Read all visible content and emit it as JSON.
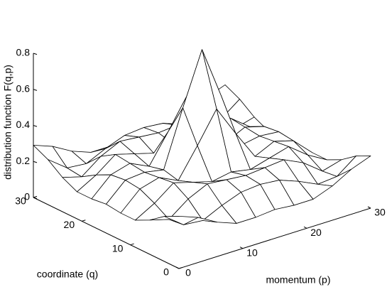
{
  "chart_data": {
    "type": "surface",
    "xlabel": "momentum (p)",
    "ylabel": "coordinate (q)",
    "zlabel": "distribution function F(q,p)",
    "x": [
      0,
      3,
      6,
      9,
      12,
      15,
      18,
      21,
      24,
      27,
      30
    ],
    "y": [
      0,
      3,
      6,
      9,
      12,
      15,
      18,
      21,
      24,
      27,
      30
    ],
    "z": [
      [
        0.29,
        0.25,
        0.19,
        0.15,
        0.15,
        0.16,
        0.15,
        0.15,
        0.19,
        0.25,
        0.29
      ],
      [
        0.25,
        0.17,
        0.16,
        0.21,
        0.25,
        0.26,
        0.25,
        0.21,
        0.16,
        0.17,
        0.25
      ],
      [
        0.19,
        0.16,
        0.24,
        0.29,
        0.28,
        0.27,
        0.28,
        0.29,
        0.24,
        0.16,
        0.19
      ],
      [
        0.15,
        0.21,
        0.29,
        0.26,
        0.23,
        0.25,
        0.23,
        0.26,
        0.29,
        0.21,
        0.15
      ],
      [
        0.15,
        0.25,
        0.28,
        0.23,
        0.39,
        0.56,
        0.39,
        0.23,
        0.28,
        0.25,
        0.15
      ],
      [
        0.16,
        0.26,
        0.27,
        0.25,
        0.56,
        0.85,
        0.56,
        0.25,
        0.27,
        0.26,
        0.16
      ],
      [
        0.15,
        0.25,
        0.28,
        0.23,
        0.39,
        0.56,
        0.39,
        0.23,
        0.28,
        0.25,
        0.15
      ],
      [
        0.15,
        0.21,
        0.29,
        0.26,
        0.23,
        0.25,
        0.23,
        0.26,
        0.29,
        0.21,
        0.15
      ],
      [
        0.19,
        0.16,
        0.24,
        0.29,
        0.28,
        0.27,
        0.28,
        0.29,
        0.24,
        0.16,
        0.19
      ],
      [
        0.25,
        0.17,
        0.16,
        0.21,
        0.25,
        0.26,
        0.25,
        0.21,
        0.16,
        0.17,
        0.25
      ],
      [
        0.29,
        0.25,
        0.19,
        0.15,
        0.15,
        0.16,
        0.15,
        0.15,
        0.19,
        0.25,
        0.29
      ]
    ],
    "xlim": [
      0,
      30
    ],
    "xticks": [
      0,
      10,
      20,
      30
    ],
    "ylim": [
      0,
      30
    ],
    "yticks": [
      0,
      10,
      20,
      30
    ],
    "zlim": [
      0,
      0.8
    ],
    "zticks": [
      0,
      0.2,
      0.4,
      0.6,
      0.8
    ],
    "color": "#000000"
  }
}
